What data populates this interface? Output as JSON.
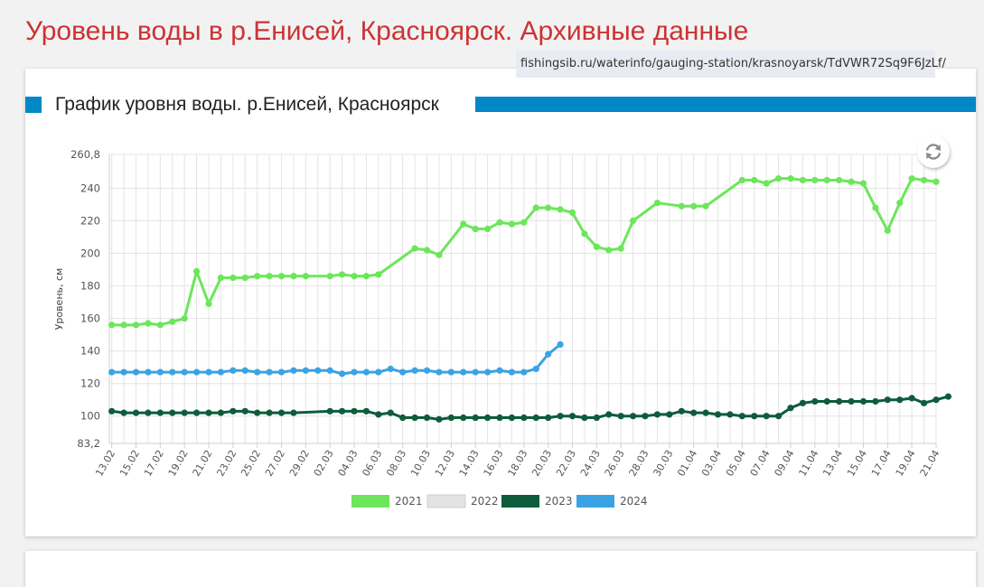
{
  "page": {
    "title": "Уровень воды в р.Енисей, Красноярск. Архивные данные",
    "url_tooltip": "fishingsib.ru/waterinfo/gauging-station/krasnoyarsk/TdVWR72Sq9F6JzLf/"
  },
  "section": {
    "title": "График уровня воды. р.Енисей, Красноярск",
    "accent_color": "#0088c6"
  },
  "refresh_icon": "refresh-icon",
  "chart_data": {
    "type": "line",
    "ylabel": "Уровень, см",
    "xlabel": "",
    "ylim": [
      83.2,
      260.8
    ],
    "y_ticks": [
      "260,8",
      "240",
      "220",
      "200",
      "180",
      "160",
      "140",
      "120",
      "100",
      "83,2"
    ],
    "y_tick_values": [
      260.8,
      240,
      220,
      200,
      180,
      160,
      140,
      120,
      100,
      83.2
    ],
    "grid": true,
    "legend_position": "bottom",
    "x_start": "13.02",
    "x_end": "21.04",
    "x_tick_labels": [
      "13.02",
      "15.02",
      "17.02",
      "19.02",
      "21.02",
      "23.02",
      "25.02",
      "27.02",
      "29.02",
      "02.03",
      "04.03",
      "06.03",
      "08.03",
      "10.03",
      "12.03",
      "14.03",
      "16.03",
      "18.03",
      "20.03",
      "22.03",
      "24.03",
      "26.03",
      "28.03",
      "30.03",
      "01.04",
      "03.04",
      "05.04",
      "07.04",
      "09.04",
      "11.04",
      "13.04",
      "15.04",
      "17.04",
      "19.04",
      "21.04"
    ],
    "series": [
      {
        "name": "2021",
        "color": "#6ce65a",
        "visible": true,
        "points": [
          [
            "13.02",
            156
          ],
          [
            "14.02",
            156
          ],
          [
            "15.02",
            156
          ],
          [
            "16.02",
            157
          ],
          [
            "17.02",
            156
          ],
          [
            "18.02",
            158
          ],
          [
            "19.02",
            160
          ],
          [
            "20.02",
            189
          ],
          [
            "21.02",
            169
          ],
          [
            "22.02",
            185
          ],
          [
            "23.02",
            185
          ],
          [
            "24.02",
            185
          ],
          [
            "25.02",
            186
          ],
          [
            "26.02",
            186
          ],
          [
            "27.02",
            186
          ],
          [
            "28.02",
            186
          ],
          [
            "29.02",
            186
          ],
          [
            "02.03",
            186
          ],
          [
            "03.03",
            187
          ],
          [
            "04.03",
            186
          ],
          [
            "05.03",
            186
          ],
          [
            "06.03",
            187
          ],
          [
            "09.03",
            203
          ],
          [
            "10.03",
            202
          ],
          [
            "11.03",
            199
          ],
          [
            "13.03",
            218
          ],
          [
            "14.03",
            215
          ],
          [
            "15.03",
            215
          ],
          [
            "16.03",
            219
          ],
          [
            "17.03",
            218
          ],
          [
            "18.03",
            219
          ],
          [
            "19.03",
            228
          ],
          [
            "20.03",
            228
          ],
          [
            "21.03",
            227
          ],
          [
            "22.03",
            225
          ],
          [
            "23.03",
            212
          ],
          [
            "24.03",
            204
          ],
          [
            "25.03",
            202
          ],
          [
            "26.03",
            203
          ],
          [
            "27.03",
            220
          ],
          [
            "29.03",
            231
          ],
          [
            "31.03",
            229
          ],
          [
            "01.04",
            229
          ],
          [
            "02.04",
            229
          ],
          [
            "05.04",
            245
          ],
          [
            "06.04",
            245
          ],
          [
            "07.04",
            243
          ],
          [
            "08.04",
            246
          ],
          [
            "09.04",
            246
          ],
          [
            "10.04",
            245
          ],
          [
            "11.04",
            245
          ],
          [
            "12.04",
            245
          ],
          [
            "13.04",
            245
          ],
          [
            "14.04",
            244
          ],
          [
            "15.04",
            243
          ],
          [
            "16.04",
            228
          ],
          [
            "17.04",
            214
          ],
          [
            "18.04",
            231
          ],
          [
            "19.04",
            246
          ],
          [
            "20.04",
            245
          ],
          [
            "21.04",
            244
          ]
        ]
      },
      {
        "name": "2022",
        "color": "#e3e3e3",
        "visible": false,
        "points": []
      },
      {
        "name": "2023",
        "color": "#0e5c3c",
        "visible": true,
        "points": [
          [
            "13.02",
            103
          ],
          [
            "14.02",
            102
          ],
          [
            "15.02",
            102
          ],
          [
            "16.02",
            102
          ],
          [
            "17.02",
            102
          ],
          [
            "18.02",
            102
          ],
          [
            "19.02",
            102
          ],
          [
            "20.02",
            102
          ],
          [
            "21.02",
            102
          ],
          [
            "22.02",
            102
          ],
          [
            "23.02",
            103
          ],
          [
            "24.02",
            103
          ],
          [
            "25.02",
            102
          ],
          [
            "26.02",
            102
          ],
          [
            "27.02",
            102
          ],
          [
            "28.02",
            102
          ],
          [
            "02.03",
            103
          ],
          [
            "03.03",
            103
          ],
          [
            "04.03",
            103
          ],
          [
            "05.03",
            103
          ],
          [
            "06.03",
            101
          ],
          [
            "07.03",
            102
          ],
          [
            "08.03",
            99
          ],
          [
            "09.03",
            99
          ],
          [
            "10.03",
            99
          ],
          [
            "11.03",
            98
          ],
          [
            "12.03",
            99
          ],
          [
            "13.03",
            99
          ],
          [
            "14.03",
            99
          ],
          [
            "15.03",
            99
          ],
          [
            "16.03",
            99
          ],
          [
            "17.03",
            99
          ],
          [
            "18.03",
            99
          ],
          [
            "19.03",
            99
          ],
          [
            "20.03",
            99
          ],
          [
            "21.03",
            100
          ],
          [
            "22.03",
            100
          ],
          [
            "23.03",
            99
          ],
          [
            "24.03",
            99
          ],
          [
            "25.03",
            101
          ],
          [
            "26.03",
            100
          ],
          [
            "27.03",
            100
          ],
          [
            "28.03",
            100
          ],
          [
            "29.03",
            101
          ],
          [
            "30.03",
            101
          ],
          [
            "31.03",
            103
          ],
          [
            "01.04",
            102
          ],
          [
            "02.04",
            102
          ],
          [
            "03.04",
            101
          ],
          [
            "04.04",
            101
          ],
          [
            "05.04",
            100
          ],
          [
            "06.04",
            100
          ],
          [
            "07.04",
            100
          ],
          [
            "08.04",
            100
          ],
          [
            "09.04",
            105
          ],
          [
            "10.04",
            108
          ],
          [
            "11.04",
            109
          ],
          [
            "12.04",
            109
          ],
          [
            "13.04",
            109
          ],
          [
            "14.04",
            109
          ],
          [
            "15.04",
            109
          ],
          [
            "16.04",
            109
          ],
          [
            "17.04",
            110
          ],
          [
            "18.04",
            110
          ],
          [
            "19.04",
            111
          ],
          [
            "20.04",
            108
          ],
          [
            "21.04",
            110
          ],
          [
            "22.04",
            112
          ]
        ]
      },
      {
        "name": "2024",
        "color": "#3aa3e3",
        "visible": true,
        "points": [
          [
            "13.02",
            127
          ],
          [
            "14.02",
            127
          ],
          [
            "15.02",
            127
          ],
          [
            "16.02",
            127
          ],
          [
            "17.02",
            127
          ],
          [
            "18.02",
            127
          ],
          [
            "19.02",
            127
          ],
          [
            "20.02",
            127
          ],
          [
            "21.02",
            127
          ],
          [
            "22.02",
            127
          ],
          [
            "23.02",
            128
          ],
          [
            "24.02",
            128
          ],
          [
            "25.02",
            127
          ],
          [
            "26.02",
            127
          ],
          [
            "27.02",
            127
          ],
          [
            "28.02",
            128
          ],
          [
            "29.02",
            128
          ],
          [
            "01.03",
            128
          ],
          [
            "02.03",
            128
          ],
          [
            "03.03",
            126
          ],
          [
            "04.03",
            127
          ],
          [
            "05.03",
            127
          ],
          [
            "06.03",
            127
          ],
          [
            "07.03",
            129
          ],
          [
            "08.03",
            127
          ],
          [
            "09.03",
            128
          ],
          [
            "10.03",
            128
          ],
          [
            "11.03",
            127
          ],
          [
            "12.03",
            127
          ],
          [
            "13.03",
            127
          ],
          [
            "14.03",
            127
          ],
          [
            "15.03",
            127
          ],
          [
            "16.03",
            128
          ],
          [
            "17.03",
            127
          ],
          [
            "18.03",
            127
          ],
          [
            "19.03",
            129
          ],
          [
            "20.03",
            138
          ],
          [
            "21.03",
            144
          ]
        ]
      }
    ]
  }
}
